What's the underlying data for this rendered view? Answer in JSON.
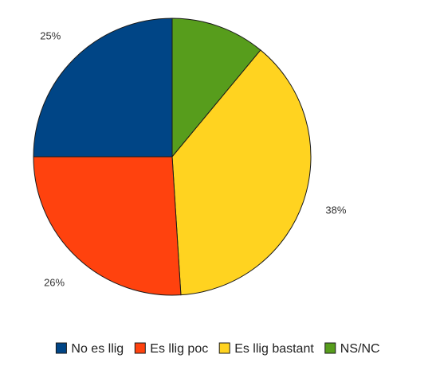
{
  "chart_data": {
    "type": "pie",
    "title": "",
    "start_angle_deg": 0,
    "direction": "clockwise",
    "slices": [
      {
        "label": "NS/NC",
        "value": 11,
        "display": "11%",
        "color": "#579d1c"
      },
      {
        "label": "Es llig bastant",
        "value": 38,
        "display": "38%",
        "color": "#ffd320"
      },
      {
        "label": "Es llig poc",
        "value": 26,
        "display": "26%",
        "color": "#ff420e"
      },
      {
        "label": "No es llig",
        "value": 25,
        "display": "25%",
        "color": "#004586"
      }
    ],
    "legend": {
      "placement": "bottom",
      "order": [
        "No es llig",
        "Es llig poc",
        "Es llig bastant",
        "NS/NC"
      ]
    }
  }
}
